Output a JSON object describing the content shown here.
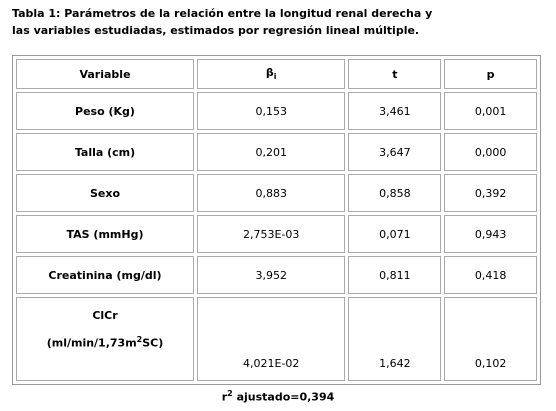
{
  "caption": {
    "line1": "Tabla 1: Parámetros de la relación entre la longitud renal derecha y",
    "line2": "las variables estudiadas, estimados por regresión lineal múltiple."
  },
  "table": {
    "header": [
      "Variable",
      {
        "text": "β",
        "sub": "i"
      },
      "t",
      "p"
    ],
    "rows": [
      [
        "Peso (Kg)",
        "0,153",
        "3,461",
        "0,001"
      ],
      [
        "Talla (cm)",
        "0,201",
        "3,647",
        "0,000"
      ],
      [
        "Sexo",
        "0,883",
        "0,858",
        "0,392"
      ],
      [
        "TAS (mmHg)",
        "2,753E-03",
        "0,071",
        "0,943"
      ],
      [
        "Creatinina (mg/dl)",
        "3,952",
        "0,811",
        "0,418"
      ],
      [
        {
          "line1": "ClCr",
          "line2": "(ml/min/1,73m",
          "sup": "2",
          "after": "SC)"
        },
        "4,021E-02",
        "1,642",
        "0,102"
      ]
    ]
  },
  "footer": {
    "base": "r",
    "sup": "2",
    "text": " ajustado=0,394"
  }
}
